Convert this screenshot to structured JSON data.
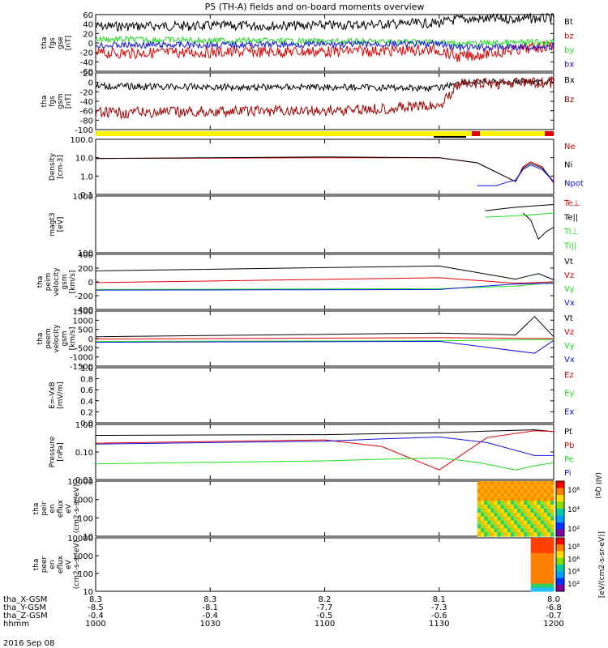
{
  "title": "P5 (TH-A) fields and on-board moments overview",
  "date_label": "2016 Sep 08",
  "colors": {
    "black": "#000000",
    "red": "#e00000",
    "green": "#22dd22",
    "blue": "#1010e0",
    "darkred": "#a00000",
    "yellow": "#f8f000",
    "barred": "#e00000"
  },
  "ephemeris": {
    "rows": [
      {
        "label": "tha_X-GSM",
        "values": [
          "8.3",
          "8.3",
          "8.2",
          "8.1",
          "8.0"
        ]
      },
      {
        "label": "tha_Y-GSM",
        "values": [
          "-8.5",
          "-8.1",
          "-7.7",
          "-7.3",
          "-6.8"
        ]
      },
      {
        "label": "tha_Z-GSM",
        "values": [
          "-0.4",
          "-0.4",
          "-0.5",
          "-0.6",
          "-0.7"
        ]
      },
      {
        "label": "hhmm",
        "values": [
          "1000",
          "1030",
          "1100",
          "1130",
          "1200"
        ]
      }
    ]
  },
  "chart_data": [
    {
      "panel": "fgs_gse",
      "type": "line",
      "ylabel": "tha fgs gse [nT]",
      "ylim": [
        -60,
        60
      ],
      "ticks": [
        "60",
        "40",
        "20",
        "0",
        "-20",
        "-40",
        "-60"
      ],
      "legend": [
        {
          "name": "Bt",
          "color": "black"
        },
        {
          "name": "bz",
          "color": "red"
        },
        {
          "name": "by",
          "color": "green"
        },
        {
          "name": "bx",
          "color": "blue"
        }
      ],
      "series": [
        {
          "name": "Bt",
          "x": [
            "10:00",
            "10:30",
            "11:00",
            "11:30",
            "11:35",
            "12:00"
          ],
          "y": [
            35,
            36,
            37,
            42,
            50,
            52
          ]
        },
        {
          "name": "bz",
          "x": [
            "10:00",
            "10:30",
            "11:00",
            "11:30",
            "11:35",
            "12:00"
          ],
          "y": [
            -22,
            -20,
            -18,
            -15,
            -30,
            -5
          ]
        },
        {
          "name": "by",
          "x": [
            "10:00",
            "10:30",
            "11:00",
            "11:30",
            "11:35",
            "12:00"
          ],
          "y": [
            8,
            5,
            3,
            2,
            -2,
            2
          ]
        },
        {
          "name": "bx",
          "x": [
            "10:00",
            "10:30",
            "11:00",
            "11:30",
            "11:35",
            "12:00"
          ],
          "y": [
            -5,
            -4,
            -3,
            -2,
            -10,
            -8
          ]
        }
      ]
    },
    {
      "panel": "fgs_gsm",
      "type": "line",
      "ylabel": "tha fgs gsm [nT]",
      "ylim": [
        -100,
        20
      ],
      "ticks": [
        "20",
        "0",
        "-20",
        "-40",
        "-60",
        "-80",
        "-100"
      ],
      "legend": [
        {
          "name": "Bx",
          "color": "black"
        },
        {
          "name": "Bz",
          "color": "darkred"
        }
      ],
      "series": [
        {
          "name": "Bx",
          "x": [
            "10:00",
            "10:30",
            "11:00",
            "11:30",
            "11:35",
            "12:00"
          ],
          "y": [
            -8,
            -10,
            -10,
            -12,
            0,
            2
          ]
        },
        {
          "name": "Bz",
          "x": [
            "10:00",
            "10:30",
            "11:00",
            "11:30",
            "11:35",
            "12:00"
          ],
          "y": [
            -65,
            -62,
            -60,
            -50,
            -4,
            0
          ]
        }
      ]
    },
    {
      "panel": "density",
      "type": "line",
      "ylabel": "Density [cm-3]",
      "yscale": "log",
      "ylim": [
        0.1,
        100
      ],
      "ticks": [
        "100.0",
        "10.0",
        "1.0",
        "0.1"
      ],
      "legend": [
        {
          "name": "Ne",
          "color": "red"
        },
        {
          "name": "Ni",
          "color": "black"
        },
        {
          "name": "Npot",
          "color": "blue"
        }
      ],
      "series": [
        {
          "name": "Ne",
          "x": [
            "10:00",
            "11:00",
            "11:30",
            "11:50",
            "11:54",
            "12:00"
          ],
          "y": [
            9,
            10,
            10,
            0.5,
            6,
            0.4
          ]
        },
        {
          "name": "Ni",
          "x": [
            "10:00",
            "11:00",
            "11:30",
            "11:50",
            "11:54",
            "12:00"
          ],
          "y": [
            9,
            11,
            10,
            0.5,
            5,
            0.5
          ]
        },
        {
          "name": "Npot",
          "x": [
            "11:40",
            "11:45",
            "11:50",
            "11:54",
            "12:00"
          ],
          "y": [
            0.3,
            0.3,
            0.6,
            4,
            0.5
          ]
        }
      ]
    },
    {
      "panel": "temperature",
      "type": "line",
      "ylabel": "magt3 [eV]",
      "yscale": "log",
      "ylim": [
        100,
        10000
      ],
      "ticks": [
        "1000",
        "100"
      ],
      "legend": [
        {
          "name": "Te⊥",
          "color": "red"
        },
        {
          "name": "Te||",
          "color": "black"
        },
        {
          "name": "Ti⊥",
          "color": "green"
        },
        {
          "name": "Ti||",
          "color": "green"
        }
      ],
      "series": [
        {
          "name": "Te||",
          "x": [
            "11:52",
            "11:56",
            "12:00"
          ],
          "y": [
            2500,
            300,
            800
          ]
        },
        {
          "name": "Ti||",
          "x": [
            "11:42",
            "11:50",
            "12:00"
          ],
          "y": [
            1800,
            2000,
            2500
          ]
        },
        {
          "name": "Npot",
          "x": [
            "11:42",
            "11:50",
            "12:00"
          ],
          "y": [
            3000,
            4000,
            5000
          ]
        }
      ]
    },
    {
      "panel": "peim_velocity",
      "type": "line",
      "ylabel": "tha peim velocity gsm [km/s]",
      "ylim": [
        -400,
        400
      ],
      "ticks": [
        "400",
        "200",
        "0",
        "-200",
        "-400"
      ],
      "legend": [
        {
          "name": "Vt",
          "color": "black"
        },
        {
          "name": "Vz",
          "color": "red"
        },
        {
          "name": "Vy",
          "color": "green"
        },
        {
          "name": "Vx",
          "color": "blue"
        }
      ],
      "series": [
        {
          "name": "Vt",
          "x": [
            "10:00",
            "11:30",
            "11:50",
            "11:56",
            "12:00"
          ],
          "y": [
            160,
            230,
            40,
            120,
            30
          ]
        },
        {
          "name": "Vz",
          "x": [
            "10:00",
            "11:30",
            "11:50",
            "12:00"
          ],
          "y": [
            -10,
            60,
            -20,
            0
          ]
        },
        {
          "name": "Vy",
          "x": [
            "10:00",
            "11:30",
            "11:50",
            "12:00"
          ],
          "y": [
            -110,
            -100,
            -60,
            -10
          ]
        },
        {
          "name": "Vx",
          "x": [
            "10:00",
            "11:30",
            "11:50",
            "12:00"
          ],
          "y": [
            -120,
            -110,
            -30,
            -20
          ]
        }
      ]
    },
    {
      "panel": "peem_velocity",
      "type": "line",
      "ylabel": "tha peem velocity gsm [km/s]",
      "ylim": [
        -1500,
        1500
      ],
      "ticks": [
        "1500",
        "1000",
        "500",
        "0",
        "-500",
        "-1000",
        "-1500"
      ],
      "legend": [
        {
          "name": "Vt",
          "color": "black"
        },
        {
          "name": "Vz",
          "color": "red"
        },
        {
          "name": "Vy",
          "color": "green"
        },
        {
          "name": "Vx",
          "color": "blue"
        }
      ],
      "series": [
        {
          "name": "Vt",
          "x": [
            "10:00",
            "11:30",
            "11:50",
            "11:55",
            "12:00"
          ],
          "y": [
            100,
            300,
            200,
            1200,
            100
          ]
        },
        {
          "name": "Vz",
          "x": [
            "10:00",
            "11:30",
            "12:00"
          ],
          "y": [
            -20,
            50,
            0
          ]
        },
        {
          "name": "Vy",
          "x": [
            "10:00",
            "11:30",
            "12:00"
          ],
          "y": [
            -150,
            -120,
            -50
          ]
        },
        {
          "name": "Vx",
          "x": [
            "10:00",
            "11:30",
            "11:55",
            "12:00"
          ],
          "y": [
            -200,
            -150,
            -800,
            -100
          ]
        }
      ]
    },
    {
      "panel": "efield",
      "type": "line",
      "ylabel": "E=-VxB [mV/m]",
      "ylim": [
        0,
        1
      ],
      "ticks": [
        "1.0",
        "0.8",
        "0.6",
        "0.4",
        "0.2",
        "0.0"
      ],
      "legend": [
        {
          "name": "Ez",
          "color": "red"
        },
        {
          "name": "Ey",
          "color": "green"
        },
        {
          "name": "Ex",
          "color": "blue"
        }
      ],
      "series": []
    },
    {
      "panel": "pressure",
      "type": "line",
      "ylabel": "Pressure [nPa]",
      "yscale": "log",
      "ylim": [
        0.01,
        2
      ],
      "ticks": [
        "1.00",
        "0.10",
        "0.01"
      ],
      "legend": [
        {
          "name": "Pt",
          "color": "black"
        },
        {
          "name": "Pb",
          "color": "red"
        },
        {
          "name": "Pe",
          "color": "green"
        },
        {
          "name": "Pi",
          "color": "blue"
        }
      ],
      "series": [
        {
          "name": "Pt",
          "x": [
            "10:00",
            "11:00",
            "11:30",
            "11:55",
            "12:00"
          ],
          "y": [
            0.7,
            0.75,
            0.9,
            1.2,
            1.0
          ]
        },
        {
          "name": "Pb",
          "x": [
            "10:00",
            "11:00",
            "11:30",
            "11:55",
            "12:00"
          ],
          "y": [
            0.33,
            0.45,
            0.025,
            1.1,
            1.0
          ]
        },
        {
          "name": "Pe",
          "x": [
            "10:00",
            "11:00",
            "11:30",
            "11:50",
            "12:00"
          ],
          "y": [
            0.045,
            0.06,
            0.08,
            0.025,
            0.05
          ]
        },
        {
          "name": "Pi",
          "x": [
            "10:00",
            "11:00",
            "11:30",
            "11:55",
            "12:00"
          ],
          "y": [
            0.3,
            0.4,
            0.6,
            0.1,
            0.1
          ]
        }
      ]
    },
    {
      "panel": "peir_en_eflux",
      "type": "heatmap",
      "ylabel": "tha peir en eflux eV (cm2-s-sr-eV)",
      "yscale": "log",
      "ylim": [
        10,
        10000
      ],
      "ticks": [
        "10000",
        "1000",
        "100",
        "10"
      ],
      "colorbar": {
        "label": "[eV/(cm2-s-sr-eV)]",
        "ticks": [
          "10⁶",
          "10⁴",
          "10²"
        ]
      },
      "data_start": "11:40"
    },
    {
      "panel": "peer_en_eflux",
      "type": "heatmap",
      "ylabel": "tha peer en eflux eV (cm2-s-sr-eV)",
      "yscale": "log",
      "ylim": [
        10,
        10000
      ],
      "ticks": [
        "10000",
        "1000",
        "100",
        "10"
      ],
      "colorbar": {
        "label": "[eV/(cm2-s-sr-eV)]",
        "ticks": [
          "10⁸",
          "10⁶",
          "10⁴",
          "10²"
        ]
      },
      "data_start": "11:54"
    }
  ],
  "extra_labels": {
    "moments_all_qs": "(All Qs)"
  }
}
